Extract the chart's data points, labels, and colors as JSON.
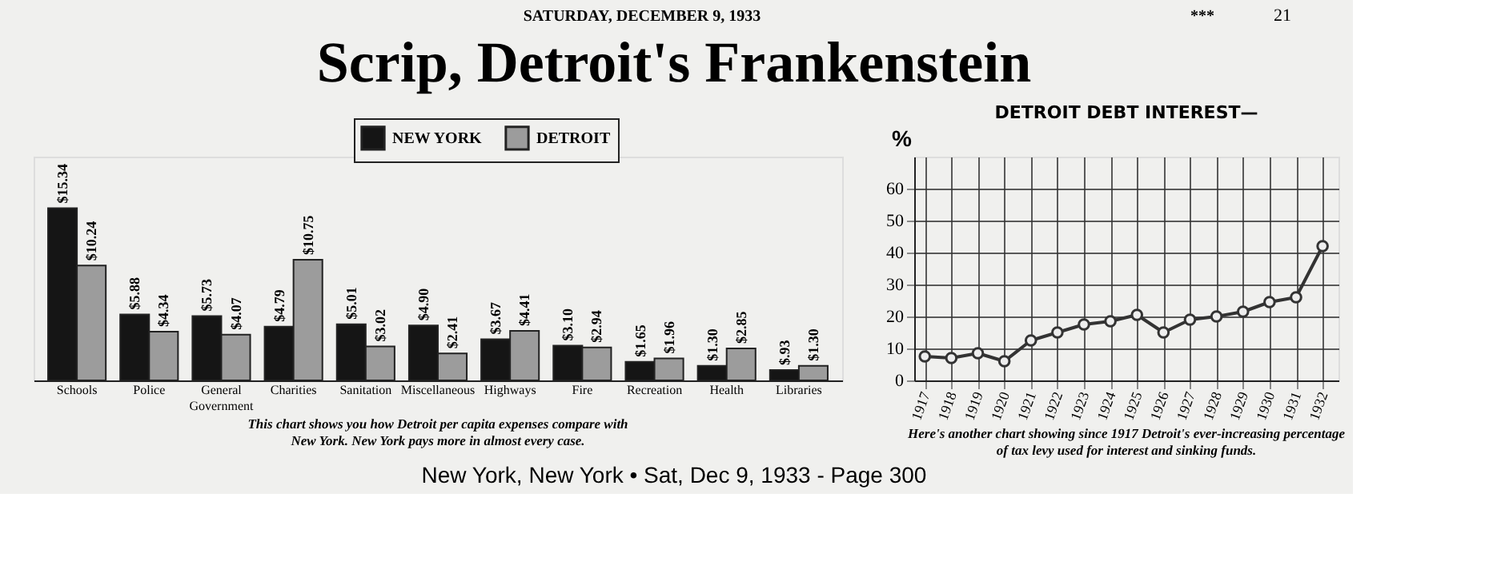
{
  "chart_data": [
    {
      "type": "bar",
      "title": "Scrip, Detroit's Frankenstein",
      "subtitle": "SATURDAY, DECEMBER 9, 1933",
      "annotations": [
        "***",
        "21",
        "This chart shows you how Detroit per capita expenses compare with New York.  New York pays more in almost every case.",
        "New York, New York • Sat, Dec 9, 1933 - Page 300"
      ],
      "categories": [
        "Schools",
        "Police",
        "General Government",
        "Charities",
        "Sanitation",
        "Miscellaneous",
        "Highways",
        "Fire",
        "Recreation",
        "Health",
        "Libraries"
      ],
      "series": [
        {
          "name": "NEW YORK",
          "color": "#151515",
          "values": [
            15.34,
            5.88,
            5.73,
            4.79,
            5.01,
            4.9,
            3.67,
            3.1,
            1.65,
            1.3,
            0.93
          ],
          "value_labels": [
            "$15.34",
            "$5.88",
            "$5.73",
            "$4.79",
            "$5.01",
            "$4.90",
            "$3.67",
            "$3.10",
            "$1.65",
            "$1.30",
            "$.93"
          ]
        },
        {
          "name": "DETROIT",
          "color": "#9c9c9c",
          "values": [
            10.24,
            4.34,
            4.07,
            10.75,
            3.02,
            2.41,
            4.41,
            2.94,
            1.96,
            2.85,
            1.3
          ],
          "value_labels": [
            "$10.24",
            "$4.34",
            "$4.07",
            "$10.75",
            "$3.02",
            "$2.41",
            "$4.41",
            "$2.94",
            "$1.96",
            "$2.85",
            "$1.30"
          ]
        }
      ],
      "legend": "top"
    },
    {
      "type": "line",
      "title": "DETROIT DEBT INTEREST—",
      "ylabel": "%",
      "annotations": [
        "Here's another chart showing since 1917 Detroit's ever-increasing percentage of tax levy used for interest and sinking funds."
      ],
      "x": [
        1917,
        1918,
        1919,
        1920,
        1921,
        1922,
        1923,
        1924,
        1925,
        1926,
        1927,
        1928,
        1929,
        1930,
        1931,
        1932
      ],
      "series": [
        {
          "color": "#333333",
          "values": [
            7.5,
            7,
            8.5,
            6,
            12.5,
            15,
            17.5,
            18.5,
            20.5,
            15,
            19,
            20,
            21.5,
            24.5,
            26,
            42
          ]
        }
      ],
      "xlim": [
        1916.6,
        1932.6
      ],
      "xticks": [
        1917,
        1918,
        1919,
        1920,
        1921,
        1922,
        1923,
        1924,
        1925,
        1926,
        1927,
        1928,
        1929,
        1930,
        1931,
        1932
      ],
      "ylim": [
        0,
        70
      ],
      "yticks": [
        0,
        10,
        20,
        30,
        40,
        50,
        60
      ],
      "grid": true,
      "marker": "circle",
      "line_style": "solid"
    }
  ]
}
